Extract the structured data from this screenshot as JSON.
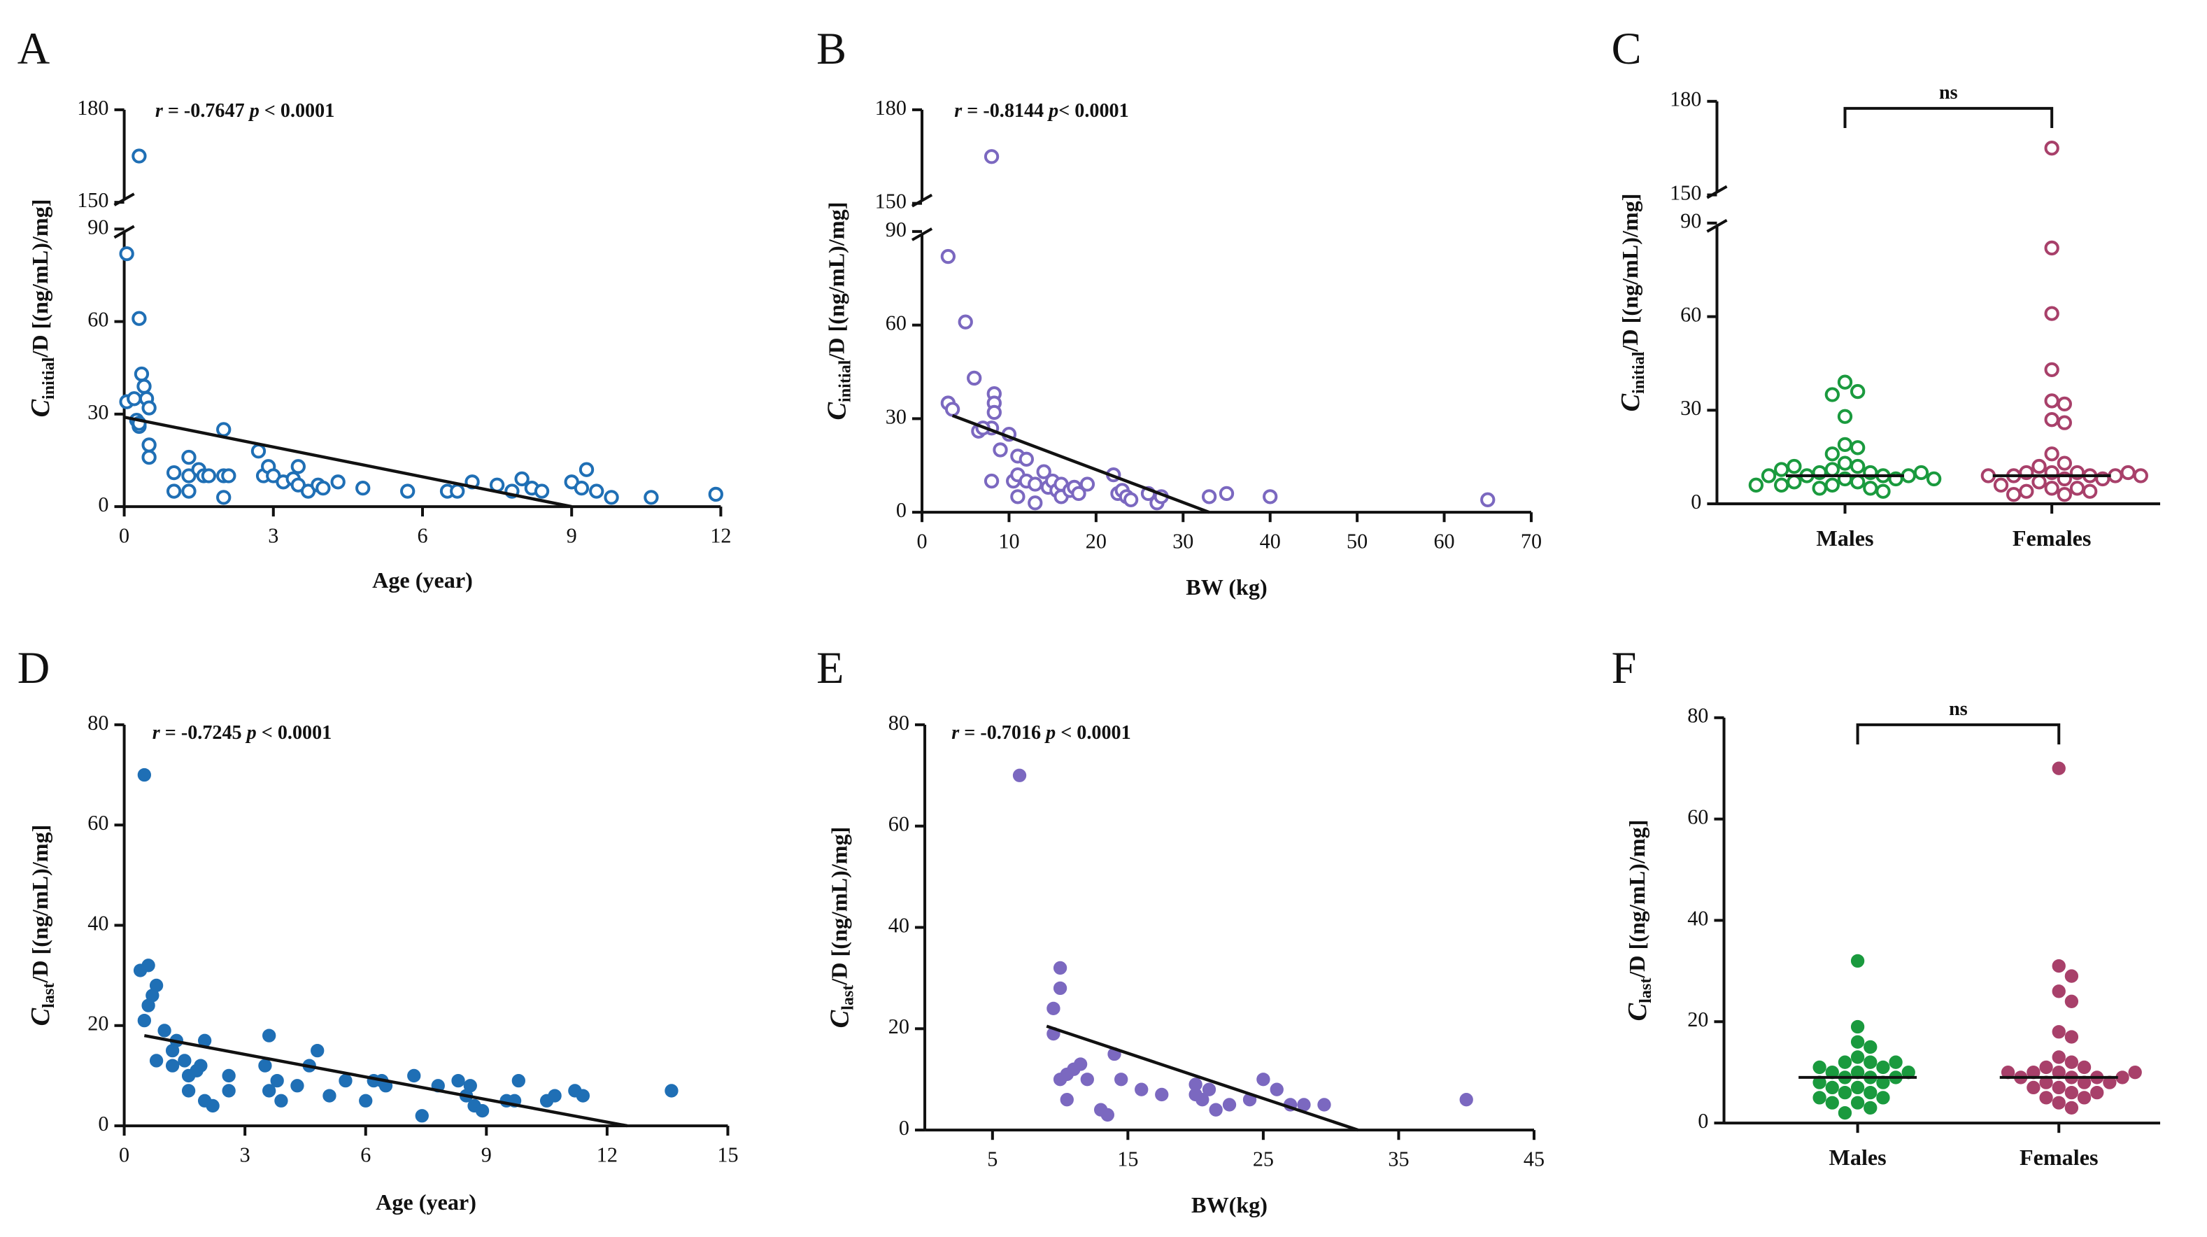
{
  "chart_data": [
    {
      "type": "scatter",
      "panel": "A",
      "annotation": [
        "r",
        " = -0.7647 ",
        "p",
        " < 0.0001"
      ],
      "xlabel": "Age (year)",
      "ylabel": [
        "C",
        "initial",
        "/D [(ng/mL)/mg]"
      ],
      "xlim": [
        0,
        12
      ],
      "xticks": [
        0,
        3,
        6,
        9,
        12
      ],
      "ylim": [
        0,
        180
      ],
      "ybreak": [
        90,
        150
      ],
      "yticks": [
        0,
        30,
        60,
        90,
        150,
        180
      ],
      "marker": "open",
      "series": [
        {
          "color": "#1f6fb5",
          "x": [
            0.3,
            0.05,
            0.3,
            0.05,
            0.2,
            0.25,
            0.3,
            0.3,
            0.35,
            0.4,
            0.45,
            0.5,
            0.5,
            0.5,
            1.0,
            1.0,
            1.3,
            1.3,
            1.3,
            1.5,
            1.6,
            1.7,
            2.0,
            2.0,
            2.0,
            2.1,
            2.7,
            2.8,
            2.9,
            3.0,
            3.2,
            3.4,
            3.5,
            3.5,
            3.7,
            3.9,
            4.0,
            4.3,
            4.8,
            5.7,
            6.5,
            6.7,
            7.0,
            7.5,
            7.8,
            8.0,
            8.2,
            8.4,
            9.0,
            9.3,
            9.2,
            9.5,
            9.8,
            10.6,
            11.9
          ],
          "y": [
            165,
            82,
            61,
            34,
            35,
            28,
            26,
            27,
            43,
            39,
            35,
            32,
            20,
            16,
            11,
            5,
            16,
            5,
            10,
            12,
            10,
            10,
            25,
            10,
            3,
            10,
            18,
            10,
            13,
            10,
            8,
            9,
            13,
            7,
            5,
            7,
            6,
            8,
            6,
            5,
            5,
            5,
            8,
            7,
            5,
            9,
            6,
            5,
            8,
            12,
            6,
            5,
            3,
            3,
            4
          ]
        }
      ],
      "trend": {
        "x": [
          0,
          9
        ],
        "y": [
          29,
          0
        ]
      }
    },
    {
      "type": "scatter",
      "panel": "B",
      "annotation": [
        "r",
        " = -0.8144 ",
        "p",
        "< 0.0001"
      ],
      "xlabel": "BW (kg)",
      "ylabel": [
        "C",
        "initial",
        "/D [(ng/mL)/mg]"
      ],
      "xlim": [
        0,
        70
      ],
      "xticks": [
        0,
        10,
        20,
        30,
        40,
        50,
        60,
        70
      ],
      "ylim": [
        0,
        180
      ],
      "ybreak": [
        90,
        150
      ],
      "yticks": [
        0,
        30,
        60,
        90,
        150,
        180
      ],
      "marker": "open",
      "series": [
        {
          "color": "#7b68c0",
          "x": [
            8,
            3,
            5,
            3,
            3.5,
            6,
            8.3,
            8.3,
            8.3,
            8,
            6.5,
            7,
            9,
            10,
            11,
            12,
            10.5,
            11,
            11,
            12,
            13,
            13,
            14,
            14.5,
            15,
            15.5,
            16,
            16,
            17,
            17.5,
            18,
            19,
            22,
            22.5,
            23,
            23.5,
            24,
            26,
            27,
            27.5,
            33,
            35,
            40,
            65,
            8
          ],
          "y": [
            165,
            82,
            61,
            35,
            33,
            43,
            38,
            35,
            32,
            27,
            26,
            27,
            20,
            25,
            18,
            17,
            10,
            5,
            12,
            10,
            3,
            9,
            13,
            8,
            10,
            7,
            9,
            5,
            7,
            8,
            6,
            9,
            12,
            6,
            7,
            5,
            4,
            6,
            3,
            5,
            5,
            6,
            5,
            4,
            10
          ]
        }
      ],
      "trend": {
        "x": [
          3.5,
          33
        ],
        "y": [
          31,
          0
        ]
      }
    },
    {
      "type": "strip",
      "panel": "C",
      "significance": "ns",
      "ylabel": [
        "C",
        "initial",
        "/D [(ng/mL)/mg]"
      ],
      "ylim": [
        0,
        180
      ],
      "ybreak": [
        90,
        150
      ],
      "yticks": [
        0,
        30,
        60,
        90,
        150,
        180
      ],
      "marker": "open",
      "categories": [
        "Males",
        "Females"
      ],
      "colors": [
        "#1a9a3e",
        "#a8406a"
      ],
      "values": [
        [
          39,
          36,
          35,
          28,
          19,
          18,
          16,
          13,
          12,
          11,
          10,
          10,
          9,
          9,
          9,
          8,
          8,
          7,
          7,
          6,
          6,
          5,
          5,
          4,
          10,
          11,
          12,
          9,
          8,
          6
        ],
        [
          165,
          82,
          61,
          43,
          33,
          32,
          27,
          26,
          16,
          13,
          12,
          10,
          10,
          10,
          9,
          9,
          9,
          9,
          8,
          8,
          7,
          6,
          5,
          5,
          4,
          4,
          3,
          3,
          10,
          9
        ]
      ],
      "medians": [
        9,
        9
      ]
    },
    {
      "type": "scatter",
      "panel": "D",
      "annotation": [
        "r",
        " = -0.7245 ",
        "p",
        " < 0.0001"
      ],
      "xlabel": "Age (year)",
      "ylabel": [
        "C",
        "last",
        "/D [(ng/mL)/mg]"
      ],
      "xlim": [
        0,
        15
      ],
      "xticks": [
        0,
        3,
        6,
        9,
        12,
        15
      ],
      "ylim": [
        0,
        80
      ],
      "yticks": [
        0,
        20,
        40,
        60,
        80
      ],
      "marker": "filled",
      "series": [
        {
          "color": "#1f6fb5",
          "x": [
            0.5,
            0.4,
            0.6,
            0.8,
            0.7,
            0.6,
            0.5,
            0.8,
            1.0,
            1.2,
            1.2,
            1.3,
            1.5,
            1.6,
            1.6,
            1.8,
            1.9,
            2.0,
            2.0,
            2.2,
            2.6,
            2.6,
            3.5,
            3.6,
            3.6,
            3.8,
            3.9,
            4.3,
            4.6,
            4.8,
            5.1,
            5.5,
            6.0,
            6.2,
            6.4,
            6.5,
            7.2,
            7.4,
            7.8,
            8.3,
            8.5,
            8.6,
            8.7,
            8.9,
            9.5,
            9.7,
            9.8,
            10.5,
            10.7,
            11.2,
            11.4,
            13.6
          ],
          "y": [
            70,
            31,
            32,
            28,
            26,
            24,
            21,
            13,
            19,
            15,
            12,
            17,
            13,
            10,
            7,
            11,
            12,
            17,
            5,
            4,
            10,
            7,
            12,
            18,
            7,
            9,
            5,
            8,
            12,
            15,
            6,
            9,
            5,
            9,
            9,
            8,
            10,
            2,
            8,
            9,
            6,
            8,
            4,
            3,
            5,
            5,
            9,
            5,
            6,
            7,
            6,
            7
          ]
        }
      ],
      "trend": {
        "x": [
          0.5,
          12.5
        ],
        "y": [
          18,
          0
        ]
      }
    },
    {
      "type": "scatter",
      "panel": "E",
      "annotation": [
        "r",
        " = -0.7016 ",
        "p",
        " < 0.0001"
      ],
      "xlabel": "BW(kg)",
      "ylabel": [
        "C",
        "last",
        "/D [(ng/mL)/mg]"
      ],
      "xlim": [
        0,
        45
      ],
      "xticks": [
        5,
        15,
        25,
        35,
        45
      ],
      "ylim": [
        0,
        80
      ],
      "yticks": [
        0,
        20,
        40,
        60,
        80
      ],
      "marker": "filled",
      "series": [
        {
          "color": "#7b68c0",
          "x": [
            7,
            10,
            10,
            9.5,
            9.5,
            10,
            10.5,
            11,
            11.5,
            10.5,
            12,
            13,
            13.5,
            14,
            14.5,
            16,
            17.5,
            20,
            20.5,
            21,
            21.5,
            20,
            22.5,
            24,
            25,
            26,
            27,
            28,
            29.5,
            40
          ],
          "y": [
            70,
            32,
            28,
            24,
            19,
            10,
            11,
            12,
            13,
            6,
            10,
            4,
            3,
            15,
            10,
            8,
            7,
            9,
            6,
            8,
            4,
            7,
            5,
            6,
            10,
            8,
            5,
            5,
            5,
            6
          ]
        }
      ],
      "trend": {
        "x": [
          9,
          32
        ],
        "y": [
          20.5,
          0
        ]
      }
    },
    {
      "type": "strip",
      "panel": "F",
      "significance": "ns",
      "ylabel": [
        "C",
        "last",
        "/D [(ng/mL)/mg]"
      ],
      "ylim": [
        0,
        80
      ],
      "yticks": [
        0,
        20,
        40,
        60,
        80
      ],
      "marker": "filled",
      "categories": [
        "Males",
        "Females"
      ],
      "colors": [
        "#1a9a3e",
        "#a8406a"
      ],
      "values": [
        [
          32,
          19,
          16,
          15,
          13,
          12,
          12,
          11,
          10,
          10,
          9,
          9,
          9,
          8,
          8,
          7,
          7,
          6,
          6,
          5,
          5,
          4,
          4,
          3,
          2,
          12,
          11,
          10
        ],
        [
          70,
          31,
          29,
          26,
          24,
          18,
          17,
          13,
          12,
          11,
          11,
          10,
          10,
          9,
          9,
          9,
          9,
          8,
          8,
          8,
          7,
          7,
          6,
          6,
          5,
          5,
          4,
          3,
          10,
          10
        ]
      ],
      "medians": [
        9,
        9
      ]
    }
  ]
}
